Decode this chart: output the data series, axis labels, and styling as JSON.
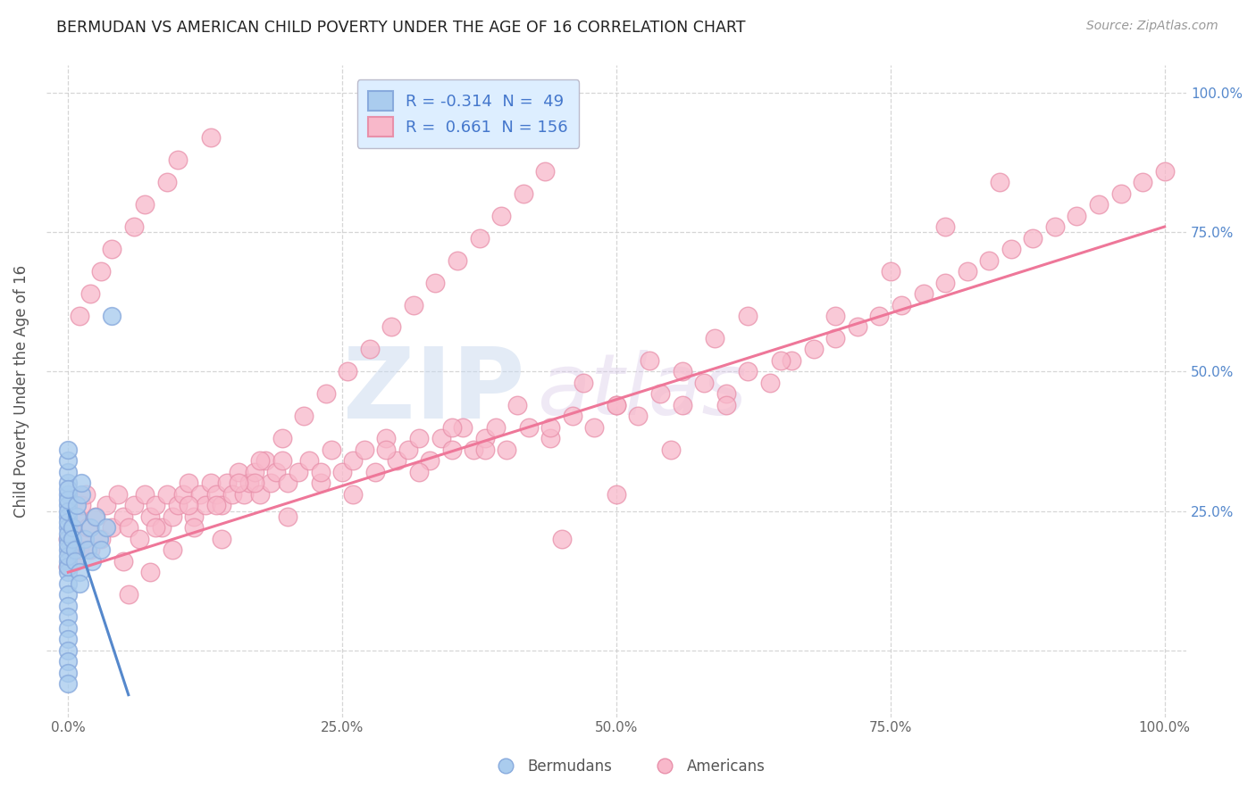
{
  "title": "BERMUDAN VS AMERICAN CHILD POVERTY UNDER THE AGE OF 16 CORRELATION CHART",
  "source": "Source: ZipAtlas.com",
  "ylabel": "Child Poverty Under the Age of 16",
  "watermark_zip": "ZIP",
  "watermark_atlas": "atlas",
  "xlim": [
    -0.02,
    1.02
  ],
  "ylim": [
    -0.12,
    1.05
  ],
  "xtick_labels": [
    "0.0%",
    "25.0%",
    "50.0%",
    "75.0%",
    "100.0%"
  ],
  "xtick_values": [
    0,
    0.25,
    0.5,
    0.75,
    1.0
  ],
  "ytick_labels": [
    "",
    "",
    "",
    "",
    ""
  ],
  "ytick_values": [
    0,
    0.25,
    0.5,
    0.75,
    1.0
  ],
  "right_ytick_labels": [
    "100.0%",
    "75.0%",
    "50.0%",
    "25.0%",
    ""
  ],
  "right_ytick_values": [
    1.0,
    0.75,
    0.5,
    0.25,
    0.0
  ],
  "bermuda_R": -0.314,
  "bermuda_N": 49,
  "american_R": 0.661,
  "american_N": 156,
  "bermuda_color": "#aaccee",
  "american_color": "#f8b8ca",
  "bermuda_edge_color": "#88aadd",
  "american_edge_color": "#e890aa",
  "bermuda_line_color": "#5588cc",
  "american_line_color": "#ee7799",
  "legend_box_color": "#ddeeff",
  "background_color": "#ffffff",
  "grid_color": "#cccccc",
  "title_color": "#222222",
  "axis_label_color": "#555555",
  "tick_color": "#666666",
  "watermark_color_zip": "#c8d8ee",
  "watermark_color_atlas": "#d8c8e8",
  "source_color": "#999999",
  "legend_text_color": "#4477cc",
  "right_axis_color": "#5588cc",
  "bermuda_x": [
    0.0,
    0.0,
    0.0,
    0.0,
    0.0,
    0.0,
    0.0,
    0.0,
    0.0,
    0.0,
    0.0,
    0.0,
    0.0,
    0.0,
    0.0,
    0.0,
    0.0,
    0.0,
    0.0,
    0.0,
    0.0,
    0.0,
    0.0,
    0.0,
    0.0,
    0.0,
    0.0,
    0.0,
    0.0,
    0.0,
    0.004,
    0.004,
    0.006,
    0.006,
    0.008,
    0.008,
    0.01,
    0.01,
    0.012,
    0.012,
    0.015,
    0.018,
    0.02,
    0.022,
    0.025,
    0.028,
    0.03,
    0.035,
    0.04
  ],
  "bermuda_y": [
    0.28,
    0.26,
    0.24,
    0.22,
    0.2,
    0.18,
    0.16,
    0.14,
    0.12,
    0.1,
    0.3,
    0.32,
    0.08,
    0.06,
    0.04,
    0.02,
    0.0,
    -0.02,
    -0.04,
    -0.06,
    0.34,
    0.36,
    0.15,
    0.17,
    0.19,
    0.21,
    0.23,
    0.25,
    0.27,
    0.29,
    0.22,
    0.2,
    0.18,
    0.16,
    0.24,
    0.26,
    0.14,
    0.12,
    0.28,
    0.3,
    0.2,
    0.18,
    0.22,
    0.16,
    0.24,
    0.2,
    0.18,
    0.22,
    0.6
  ],
  "american_x": [
    0.0,
    0.0,
    0.002,
    0.004,
    0.006,
    0.008,
    0.01,
    0.012,
    0.014,
    0.016,
    0.018,
    0.02,
    0.025,
    0.03,
    0.035,
    0.04,
    0.045,
    0.05,
    0.055,
    0.06,
    0.065,
    0.07,
    0.075,
    0.08,
    0.085,
    0.09,
    0.095,
    0.1,
    0.105,
    0.11,
    0.115,
    0.12,
    0.125,
    0.13,
    0.135,
    0.14,
    0.145,
    0.15,
    0.155,
    0.16,
    0.165,
    0.17,
    0.175,
    0.18,
    0.185,
    0.19,
    0.195,
    0.2,
    0.21,
    0.22,
    0.23,
    0.24,
    0.25,
    0.26,
    0.27,
    0.28,
    0.29,
    0.3,
    0.31,
    0.32,
    0.33,
    0.34,
    0.35,
    0.36,
    0.37,
    0.38,
    0.39,
    0.4,
    0.42,
    0.44,
    0.46,
    0.48,
    0.5,
    0.52,
    0.54,
    0.56,
    0.58,
    0.6,
    0.62,
    0.64,
    0.66,
    0.68,
    0.7,
    0.72,
    0.74,
    0.76,
    0.78,
    0.8,
    0.82,
    0.84,
    0.86,
    0.88,
    0.9,
    0.92,
    0.94,
    0.96,
    0.98,
    1.0,
    0.05,
    0.08,
    0.11,
    0.14,
    0.17,
    0.2,
    0.23,
    0.26,
    0.29,
    0.32,
    0.35,
    0.38,
    0.41,
    0.44,
    0.47,
    0.5,
    0.53,
    0.56,
    0.59,
    0.62,
    0.055,
    0.075,
    0.095,
    0.115,
    0.135,
    0.155,
    0.175,
    0.195,
    0.215,
    0.235,
    0.255,
    0.275,
    0.295,
    0.315,
    0.335,
    0.355,
    0.375,
    0.395,
    0.415,
    0.435,
    0.01,
    0.02,
    0.03,
    0.04,
    0.06,
    0.07,
    0.09,
    0.1,
    0.13,
    0.45,
    0.5,
    0.55,
    0.6,
    0.65,
    0.7,
    0.75,
    0.8,
    0.85
  ],
  "american_y": [
    0.2,
    0.15,
    0.18,
    0.22,
    0.16,
    0.24,
    0.18,
    0.26,
    0.2,
    0.28,
    0.22,
    0.18,
    0.24,
    0.2,
    0.26,
    0.22,
    0.28,
    0.24,
    0.22,
    0.26,
    0.2,
    0.28,
    0.24,
    0.26,
    0.22,
    0.28,
    0.24,
    0.26,
    0.28,
    0.3,
    0.24,
    0.28,
    0.26,
    0.3,
    0.28,
    0.26,
    0.3,
    0.28,
    0.32,
    0.28,
    0.3,
    0.32,
    0.28,
    0.34,
    0.3,
    0.32,
    0.34,
    0.3,
    0.32,
    0.34,
    0.3,
    0.36,
    0.32,
    0.34,
    0.36,
    0.32,
    0.38,
    0.34,
    0.36,
    0.38,
    0.34,
    0.38,
    0.36,
    0.4,
    0.36,
    0.38,
    0.4,
    0.36,
    0.4,
    0.38,
    0.42,
    0.4,
    0.44,
    0.42,
    0.46,
    0.44,
    0.48,
    0.46,
    0.5,
    0.48,
    0.52,
    0.54,
    0.56,
    0.58,
    0.6,
    0.62,
    0.64,
    0.66,
    0.68,
    0.7,
    0.72,
    0.74,
    0.76,
    0.78,
    0.8,
    0.82,
    0.84,
    0.86,
    0.16,
    0.22,
    0.26,
    0.2,
    0.3,
    0.24,
    0.32,
    0.28,
    0.36,
    0.32,
    0.4,
    0.36,
    0.44,
    0.4,
    0.48,
    0.44,
    0.52,
    0.5,
    0.56,
    0.6,
    0.1,
    0.14,
    0.18,
    0.22,
    0.26,
    0.3,
    0.34,
    0.38,
    0.42,
    0.46,
    0.5,
    0.54,
    0.58,
    0.62,
    0.66,
    0.7,
    0.74,
    0.78,
    0.82,
    0.86,
    0.6,
    0.64,
    0.68,
    0.72,
    0.76,
    0.8,
    0.84,
    0.88,
    0.92,
    0.2,
    0.28,
    0.36,
    0.44,
    0.52,
    0.6,
    0.68,
    0.76,
    0.84
  ]
}
